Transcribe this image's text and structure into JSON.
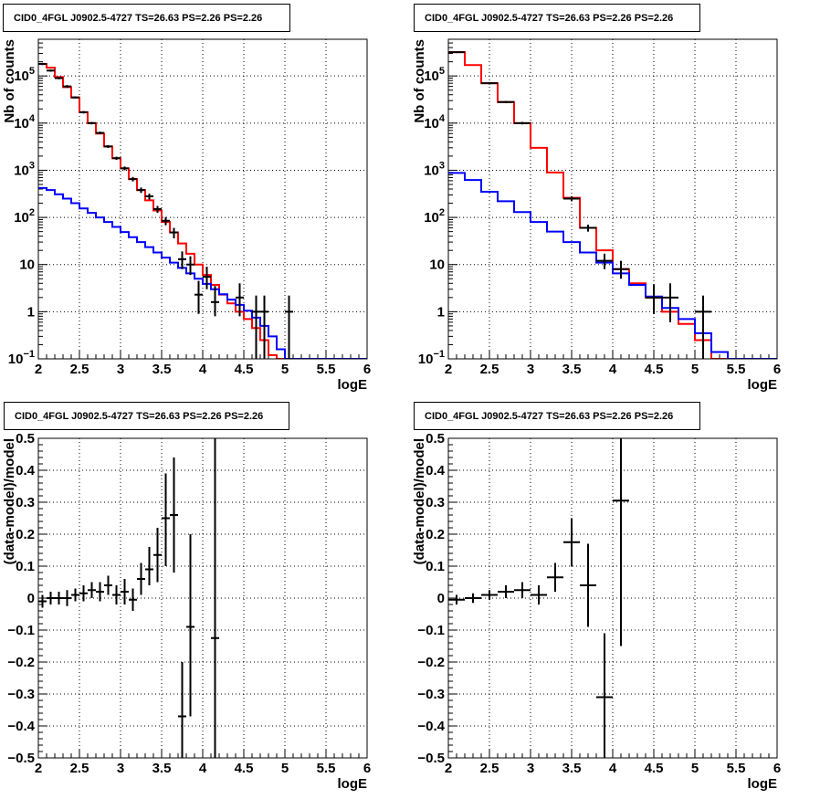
{
  "chart_data": [
    {
      "type": "line",
      "panel": "top-left",
      "title": "CID0_4FGL J0902.5-4727 TS=26.63 PS=2.26 PS=2.26",
      "xlabel": "logE",
      "ylabel": "Nb of counts",
      "yscale": "log",
      "xlim": [
        2,
        6
      ],
      "ylim": [
        0.1,
        600000
      ],
      "grid": true,
      "xticks": [
        "2",
        "2.5",
        "3",
        "3.5",
        "4",
        "4.5",
        "5",
        "5.5",
        "6"
      ],
      "yticks": [
        {
          "v": 0.1,
          "mant": "10",
          "exp": "−1"
        },
        {
          "v": 1,
          "mant": "1",
          "exp": ""
        },
        {
          "v": 10,
          "mant": "10",
          "exp": ""
        },
        {
          "v": 100,
          "mant": "10",
          "exp": "2"
        },
        {
          "v": 1000,
          "mant": "10",
          "exp": "3"
        },
        {
          "v": 10000,
          "mant": "10",
          "exp": "4"
        },
        {
          "v": 100000,
          "mant": "10",
          "exp": "5"
        }
      ],
      "series": [
        {
          "role": "model-red",
          "color": "#ff0000",
          "edges": [
            2.0,
            2.1,
            2.2,
            2.3,
            2.4,
            2.5,
            2.6,
            2.7,
            2.8,
            2.9,
            3.0,
            3.1,
            3.2,
            3.3,
            3.4,
            3.5,
            3.6,
            3.7,
            3.8,
            3.9,
            4.0,
            4.1,
            4.2,
            4.3,
            4.4,
            4.5,
            4.6,
            4.7,
            4.8,
            4.9,
            5.0,
            5.1,
            5.2,
            5.3,
            5.4,
            5.5,
            5.6,
            5.7,
            5.8,
            5.9,
            6.0
          ],
          "values": [
            180000,
            150000,
            95000,
            58000,
            35000,
            17000,
            10000,
            6000,
            3200,
            1800,
            1100,
            650,
            380,
            230,
            140,
            80,
            48,
            28,
            17,
            10,
            6,
            3.7,
            2.3,
            1.5,
            1.0,
            0.7,
            0.45,
            0.25,
            0.12,
            0.1,
            0.1,
            0.1,
            0.1,
            0.1,
            0.1,
            0.1,
            0.1,
            0.1,
            0.1,
            0.1
          ]
        },
        {
          "role": "model-blue",
          "color": "#0000ff",
          "edges": [
            2.0,
            2.1,
            2.2,
            2.3,
            2.4,
            2.5,
            2.6,
            2.7,
            2.8,
            2.9,
            3.0,
            3.1,
            3.2,
            3.3,
            3.4,
            3.5,
            3.6,
            3.7,
            3.8,
            3.9,
            4.0,
            4.1,
            4.2,
            4.3,
            4.4,
            4.5,
            4.6,
            4.7,
            4.8,
            4.9,
            5.0,
            5.1,
            5.2,
            5.3,
            5.4,
            5.5,
            5.6,
            5.7,
            5.8,
            5.9,
            6.0
          ],
          "values": [
            420,
            380,
            310,
            250,
            200,
            155,
            125,
            100,
            80,
            63,
            49,
            38,
            30,
            23.5,
            18,
            14,
            11,
            8.5,
            6.5,
            5,
            3.9,
            3,
            2.35,
            1.8,
            1.4,
            1.05,
            0.75,
            0.5,
            0.3,
            0.16,
            0.1,
            0.1,
            0.1,
            0.1,
            0.1,
            0.1,
            0.1,
            0.1,
            0.1,
            0.1
          ]
        }
      ],
      "points": [
        {
          "x": 2.05,
          "y": 180000,
          "dx": 0.05,
          "dy": [
            170000,
            190000
          ]
        },
        {
          "x": 2.15,
          "y": 130000,
          "dx": 0.05,
          "dy": [
            123000,
            137000
          ]
        },
        {
          "x": 2.25,
          "y": 90000,
          "dx": 0.05,
          "dy": [
            85000,
            95000
          ]
        },
        {
          "x": 2.35,
          "y": 60000,
          "dx": 0.05,
          "dy": [
            56000,
            64000
          ]
        },
        {
          "x": 2.45,
          "y": 35000,
          "dx": 0.05,
          "dy": [
            33000,
            37000
          ]
        },
        {
          "x": 2.55,
          "y": 17000,
          "dx": 0.05,
          "dy": [
            16000,
            18000
          ]
        },
        {
          "x": 2.65,
          "y": 10000,
          "dx": 0.05,
          "dy": [
            9400,
            10600
          ]
        },
        {
          "x": 2.75,
          "y": 6200,
          "dx": 0.05,
          "dy": [
            5800,
            6600
          ]
        },
        {
          "x": 2.85,
          "y": 3200,
          "dx": 0.05,
          "dy": [
            2980,
            3420
          ]
        },
        {
          "x": 2.95,
          "y": 1800,
          "dx": 0.05,
          "dy": [
            1660,
            1940
          ]
        },
        {
          "x": 3.05,
          "y": 1100,
          "dx": 0.05,
          "dy": [
            1000,
            1200
          ]
        },
        {
          "x": 3.15,
          "y": 650,
          "dx": 0.05,
          "dy": [
            580,
            720
          ]
        },
        {
          "x": 3.25,
          "y": 380,
          "dx": 0.05,
          "dy": [
            330,
            430
          ]
        },
        {
          "x": 3.35,
          "y": 280,
          "dx": 0.05,
          "dy": [
            240,
            320
          ]
        },
        {
          "x": 3.45,
          "y": 150,
          "dx": 0.05,
          "dy": [
            125,
            175
          ]
        },
        {
          "x": 3.55,
          "y": 85,
          "dx": 0.05,
          "dy": [
            68,
            102
          ]
        },
        {
          "x": 3.65,
          "y": 48,
          "dx": 0.05,
          "dy": [
            36,
            60
          ]
        },
        {
          "x": 3.75,
          "y": 13,
          "dx": 0.05,
          "dy": [
            8,
            19
          ]
        },
        {
          "x": 3.85,
          "y": 10,
          "dx": 0.05,
          "dy": [
            6,
            15
          ]
        },
        {
          "x": 3.95,
          "y": 2.3,
          "dx": 0.05,
          "dy": [
            0.9,
            4.5
          ]
        },
        {
          "x": 4.05,
          "y": 5.5,
          "dx": 0.05,
          "dy": [
            3,
            9
          ]
        },
        {
          "x": 4.15,
          "y": 1.6,
          "dx": 0.05,
          "dy": [
            0.8,
            3.5
          ]
        },
        {
          "x": 4.45,
          "y": 2,
          "dx": 0.05,
          "dy": [
            0.8,
            4
          ]
        },
        {
          "x": 4.65,
          "y": 1,
          "dx": 0.05,
          "dy": [
            0.1,
            2.2
          ]
        },
        {
          "x": 4.75,
          "y": 1,
          "dx": 0.05,
          "dy": [
            0.1,
            2.2
          ]
        },
        {
          "x": 5.05,
          "y": 1,
          "dx": 0.05,
          "dy": [
            0.1,
            2.2
          ]
        }
      ]
    },
    {
      "type": "line",
      "panel": "top-right",
      "title": "CID0_4FGL J0902.5-4727 TS=26.63 PS=2.26 PS=2.26",
      "xlabel": "logE",
      "ylabel": "Nb of counts",
      "yscale": "log",
      "xlim": [
        2,
        6
      ],
      "ylim": [
        0.1,
        600000
      ],
      "grid": true,
      "xticks": [
        "2",
        "2.5",
        "3",
        "3.5",
        "4",
        "4.5",
        "5",
        "5.5",
        "6"
      ],
      "yticks": [
        {
          "v": 0.1,
          "mant": "10",
          "exp": "−1"
        },
        {
          "v": 1,
          "mant": "1",
          "exp": ""
        },
        {
          "v": 10,
          "mant": "10",
          "exp": ""
        },
        {
          "v": 100,
          "mant": "10",
          "exp": "2"
        },
        {
          "v": 1000,
          "mant": "10",
          "exp": "3"
        },
        {
          "v": 10000,
          "mant": "10",
          "exp": "4"
        },
        {
          "v": 100000,
          "mant": "10",
          "exp": "5"
        }
      ],
      "series": [
        {
          "role": "model-red",
          "color": "#ff0000",
          "edges": [
            2.0,
            2.2,
            2.4,
            2.6,
            2.8,
            3.0,
            3.2,
            3.4,
            3.6,
            3.8,
            4.0,
            4.2,
            4.4,
            4.6,
            4.8,
            5.0,
            5.2,
            5.4,
            5.6,
            5.8,
            6.0
          ],
          "values": [
            320000,
            170000,
            70000,
            28000,
            10000,
            3000,
            900,
            260,
            60,
            20,
            8,
            4,
            2,
            1,
            0.55,
            0.25,
            0.1,
            0.1,
            0.1,
            0.1
          ]
        },
        {
          "role": "model-blue",
          "color": "#0000ff",
          "edges": [
            2.0,
            2.2,
            2.4,
            2.6,
            2.8,
            3.0,
            3.2,
            3.4,
            3.6,
            3.8,
            4.0,
            4.2,
            4.4,
            4.6,
            4.8,
            5.0,
            5.2,
            5.4,
            5.6,
            5.8,
            6.0
          ],
          "values": [
            880,
            620,
            350,
            220,
            130,
            80,
            50,
            30,
            18,
            11,
            6.5,
            3.7,
            2.1,
            1.2,
            0.7,
            0.35,
            0.14,
            0.1,
            0.1,
            0.1
          ]
        }
      ],
      "points": [
        {
          "x": 2.1,
          "y": 320000,
          "dx": 0.1,
          "dy": [
            305000,
            335000
          ]
        },
        {
          "x": 2.5,
          "y": 70000,
          "dx": 0.1,
          "dy": [
            66000,
            74000
          ]
        },
        {
          "x": 2.7,
          "y": 28000,
          "dx": 0.1,
          "dy": [
            26500,
            29500
          ]
        },
        {
          "x": 2.9,
          "y": 10000,
          "dx": 0.1,
          "dy": [
            9400,
            10600
          ]
        },
        {
          "x": 3.5,
          "y": 250,
          "dx": 0.1,
          "dy": [
            220,
            280
          ]
        },
        {
          "x": 3.7,
          "y": 60,
          "dx": 0.1,
          "dy": [
            50,
            70
          ]
        },
        {
          "x": 3.9,
          "y": 12,
          "dx": 0.1,
          "dy": [
            8,
            17
          ]
        },
        {
          "x": 4.1,
          "y": 8,
          "dx": 0.1,
          "dy": [
            5,
            12
          ]
        },
        {
          "x": 4.5,
          "y": 2,
          "dx": 0.1,
          "dy": [
            0.9,
            3.8
          ]
        },
        {
          "x": 4.7,
          "y": 2,
          "dx": 0.1,
          "dy": [
            0.6,
            4
          ]
        },
        {
          "x": 5.1,
          "y": 1,
          "dx": 0.1,
          "dy": [
            0.1,
            2.2
          ]
        }
      ]
    },
    {
      "type": "scatter",
      "panel": "bottom-left",
      "title": "CID0_4FGL J0902.5-4727 TS=26.63 PS=2.26 PS=2.26",
      "xlabel": "logE",
      "ylabel": "(data-model)/model",
      "xlim": [
        2,
        6
      ],
      "ylim": [
        -0.5,
        0.5
      ],
      "grid": true,
      "xticks": [
        "2",
        "2.5",
        "3",
        "3.5",
        "4",
        "4.5",
        "5",
        "5.5",
        "6"
      ],
      "yticks": [
        "−0.5",
        "−0.4",
        "−0.3",
        "−0.2",
        "−0.1",
        "0",
        "0.1",
        "0.2",
        "0.3",
        "0.4",
        "0.5"
      ],
      "points": [
        {
          "x": 2.05,
          "y": -0.01,
          "dx": 0.05,
          "dy": [
            -0.03,
            0.01
          ]
        },
        {
          "x": 2.15,
          "y": 0.0,
          "dx": 0.05,
          "dy": [
            -0.02,
            0.02
          ]
        },
        {
          "x": 2.25,
          "y": 0.0,
          "dx": 0.05,
          "dy": [
            -0.02,
            0.02
          ]
        },
        {
          "x": 2.35,
          "y": 0.0,
          "dx": 0.05,
          "dy": [
            -0.025,
            0.025
          ]
        },
        {
          "x": 2.45,
          "y": 0.01,
          "dx": 0.05,
          "dy": [
            -0.01,
            0.03
          ]
        },
        {
          "x": 2.55,
          "y": 0.015,
          "dx": 0.05,
          "dy": [
            -0.01,
            0.04
          ]
        },
        {
          "x": 2.65,
          "y": 0.025,
          "dx": 0.05,
          "dy": [
            0.0,
            0.05
          ]
        },
        {
          "x": 2.75,
          "y": 0.02,
          "dx": 0.05,
          "dy": [
            -0.01,
            0.05
          ]
        },
        {
          "x": 2.85,
          "y": 0.04,
          "dx": 0.05,
          "dy": [
            0.01,
            0.07
          ]
        },
        {
          "x": 2.95,
          "y": 0.01,
          "dx": 0.05,
          "dy": [
            -0.02,
            0.04
          ]
        },
        {
          "x": 3.05,
          "y": 0.02,
          "dx": 0.05,
          "dy": [
            -0.02,
            0.06
          ]
        },
        {
          "x": 3.15,
          "y": -0.005,
          "dx": 0.05,
          "dy": [
            -0.04,
            0.03
          ]
        },
        {
          "x": 3.25,
          "y": 0.06,
          "dx": 0.05,
          "dy": [
            0.01,
            0.11
          ]
        },
        {
          "x": 3.35,
          "y": 0.09,
          "dx": 0.05,
          "dy": [
            0.04,
            0.16
          ]
        },
        {
          "x": 3.45,
          "y": 0.135,
          "dx": 0.05,
          "dy": [
            0.05,
            0.22
          ]
        },
        {
          "x": 3.55,
          "y": 0.25,
          "dx": 0.05,
          "dy": [
            0.1,
            0.39
          ]
        },
        {
          "x": 3.65,
          "y": 0.26,
          "dx": 0.05,
          "dy": [
            0.08,
            0.44
          ]
        },
        {
          "x": 3.75,
          "y": -0.37,
          "dx": 0.05,
          "dy": [
            -0.53,
            -0.2
          ]
        },
        {
          "x": 3.85,
          "y": -0.09,
          "dx": 0.05,
          "dy": [
            -0.37,
            0.2
          ]
        },
        {
          "x": 4.15,
          "y": -0.125,
          "dx": 0.05,
          "dy": [
            -0.52,
            0.5
          ]
        }
      ]
    },
    {
      "type": "scatter",
      "panel": "bottom-right",
      "title": "CID0_4FGL J0902.5-4727 TS=26.63 PS=2.26 PS=2.26",
      "xlabel": "logE",
      "ylabel": "(data-model)/model",
      "xlim": [
        2,
        6
      ],
      "ylim": [
        -0.5,
        0.5
      ],
      "grid": true,
      "xticks": [
        "2",
        "2.5",
        "3",
        "3.5",
        "4",
        "4.5",
        "5",
        "5.5",
        "6"
      ],
      "yticks": [
        "−0.5",
        "−0.4",
        "−0.3",
        "−0.2",
        "−0.1",
        "0",
        "0.1",
        "0.2",
        "0.3",
        "0.4",
        "0.5"
      ],
      "points": [
        {
          "x": 2.1,
          "y": -0.005,
          "dx": 0.1,
          "dy": [
            -0.02,
            0.01
          ]
        },
        {
          "x": 2.3,
          "y": 0.0,
          "dx": 0.1,
          "dy": [
            -0.015,
            0.015
          ]
        },
        {
          "x": 2.5,
          "y": 0.01,
          "dx": 0.1,
          "dy": [
            -0.005,
            0.025
          ]
        },
        {
          "x": 2.7,
          "y": 0.02,
          "dx": 0.1,
          "dy": [
            0.0,
            0.04
          ]
        },
        {
          "x": 2.9,
          "y": 0.025,
          "dx": 0.1,
          "dy": [
            0.0,
            0.05
          ]
        },
        {
          "x": 3.1,
          "y": 0.01,
          "dx": 0.1,
          "dy": [
            -0.02,
            0.04
          ]
        },
        {
          "x": 3.3,
          "y": 0.065,
          "dx": 0.1,
          "dy": [
            0.02,
            0.11
          ]
        },
        {
          "x": 3.5,
          "y": 0.175,
          "dx": 0.1,
          "dy": [
            0.1,
            0.25
          ]
        },
        {
          "x": 3.7,
          "y": 0.04,
          "dx": 0.1,
          "dy": [
            -0.09,
            0.17
          ]
        },
        {
          "x": 3.9,
          "y": -0.31,
          "dx": 0.1,
          "dy": [
            -0.52,
            -0.11
          ]
        },
        {
          "x": 4.1,
          "y": 0.305,
          "dx": 0.1,
          "dy": [
            -0.15,
            0.5
          ]
        }
      ]
    }
  ]
}
